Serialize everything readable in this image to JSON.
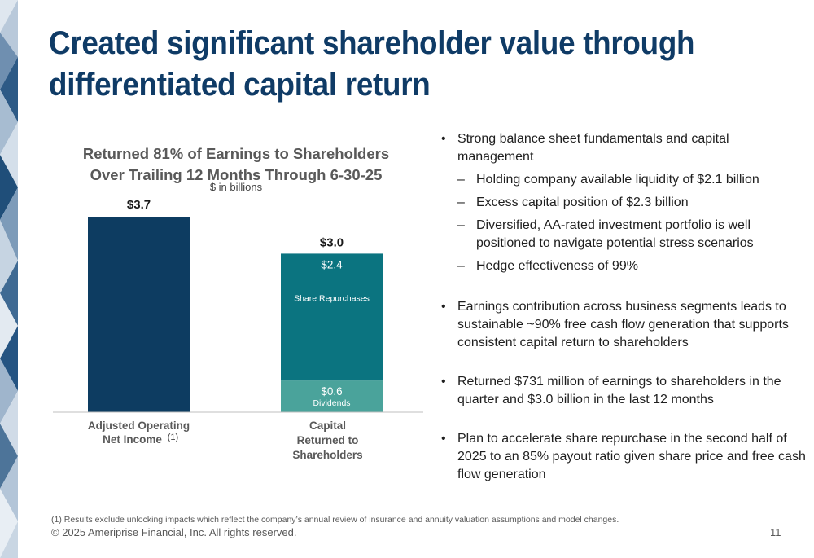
{
  "slide": {
    "title": "Created significant shareholder value through differentiated capital return",
    "footnote": "(1) Results exclude unlocking impacts which reflect the company’s annual review of insurance and annuity valuation assumptions and model changes.",
    "copyright": "© 2025 Ameriprise Financial, Inc. All rights reserved.",
    "page_number": "11",
    "colors": {
      "title": "#0f3b66",
      "income_bar": "#0d3c61",
      "share_repurchases": "#0b7480",
      "dividends": "#4aa39b",
      "decor": "#1f4e79"
    }
  },
  "chart_data": {
    "type": "bar",
    "stacked": true,
    "title": "Returned 81% of Earnings to Shareholders Over Trailing 12 Months Through 6-30-25",
    "title_lines": [
      "Returned 81% of Earnings to Shareholders",
      "Over Trailing 12 Months Through 6-30-25"
    ],
    "subtitle": "$ in billions",
    "categories": [
      "Adjusted Operating Net Income(1)",
      "Capital Returned to Shareholders"
    ],
    "category_label_lines": [
      [
        "Adjusted Operating",
        "Net Income"
      ],
      [
        "Capital",
        "Returned to",
        "Shareholders"
      ]
    ],
    "category_footnote_marker": "(1)",
    "series": [
      {
        "name": "Adjusted Operating Net Income",
        "values": [
          3.7,
          null
        ],
        "label": "$3.7"
      },
      {
        "name": "Dividends",
        "values": [
          null,
          0.6
        ],
        "label": "$0.6"
      },
      {
        "name": "Share Repurchases",
        "values": [
          null,
          2.4
        ],
        "label": "$2.4"
      }
    ],
    "totals": [
      "$3.7",
      "$3.0"
    ],
    "ylim": [
      0,
      4.0
    ],
    "grid": false,
    "legend": "none"
  },
  "bullets": [
    {
      "text": "Strong balance sheet fundamentals and capital management",
      "subs": [
        "Holding company available liquidity of $2.1 billion",
        "Excess capital position of $2.3 billion",
        "Diversified, AA-rated investment portfolio is well positioned to navigate potential stress scenarios",
        "Hedge effectiveness of 99%"
      ]
    },
    {
      "text": "Earnings contribution across business segments leads to sustainable ~90% free cash flow generation that supports consistent capital return to shareholders"
    },
    {
      "text": "Returned $731 million of earnings to shareholders in the quarter and $3.0 billion in the last 12 months"
    },
    {
      "text": "Plan to accelerate share repurchase in the second half of 2025 to an 85% payout ratio given share price and free cash flow generation"
    }
  ]
}
